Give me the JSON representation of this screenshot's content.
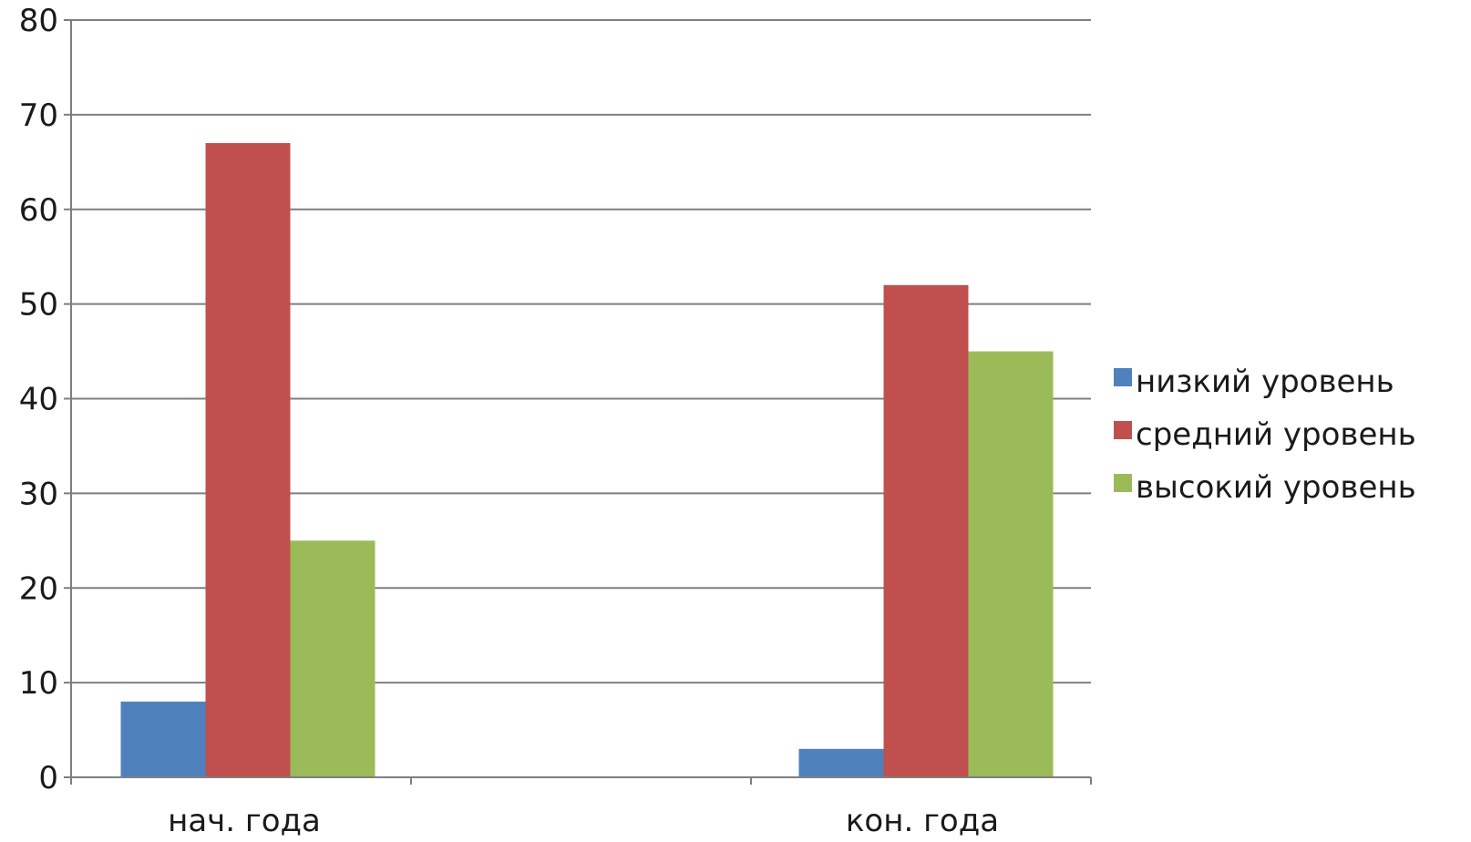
{
  "chart_data": {
    "type": "bar",
    "categories": [
      "нач. года",
      "кон. года"
    ],
    "series": [
      {
        "name": "низкий уровень",
        "values": [
          8,
          3
        ],
        "color": "#4f81bd"
      },
      {
        "name": "средний уровень",
        "values": [
          67,
          52
        ],
        "color": "#c0504d"
      },
      {
        "name": "высокий уровень",
        "values": [
          25,
          45
        ],
        "color": "#9bbb59"
      }
    ],
    "ylim": [
      0,
      80
    ],
    "yticks": [
      0,
      10,
      20,
      30,
      40,
      50,
      60,
      70,
      80
    ],
    "grid": true,
    "legend_position": "right"
  }
}
